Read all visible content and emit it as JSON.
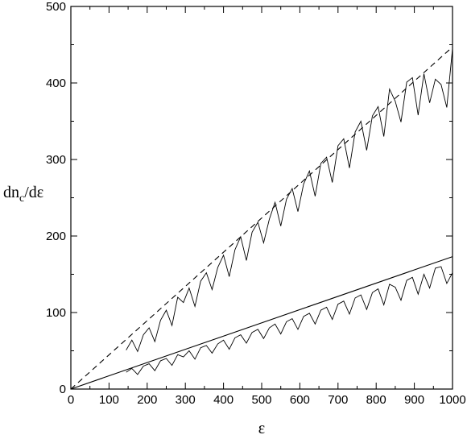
{
  "chart_data": {
    "type": "line",
    "title": "",
    "xlabel": "ε",
    "ylabel": {
      "base": "dn",
      "sub": "c",
      "rest": "/dε"
    },
    "xlim": [
      0,
      1000
    ],
    "ylim": [
      0,
      500
    ],
    "x_ticks": [
      0,
      100,
      200,
      300,
      400,
      500,
      600,
      700,
      800,
      900,
      1000
    ],
    "y_ticks": [
      0,
      100,
      200,
      300,
      400,
      500
    ],
    "grid": false,
    "legend": "none",
    "series": [
      {
        "style": "solid-noisy",
        "x": [
          145,
          160,
          175,
          190,
          205,
          220,
          235,
          250,
          265,
          280,
          295,
          310,
          325,
          340,
          355,
          370,
          385,
          400,
          415,
          430,
          445,
          460,
          475,
          490,
          505,
          520,
          535,
          550,
          565,
          580,
          595,
          610,
          625,
          640,
          655,
          670,
          685,
          700,
          715,
          730,
          745,
          760,
          775,
          790,
          805,
          820,
          835,
          850,
          865,
          880,
          895,
          910,
          925,
          940,
          955,
          970,
          985,
          1000
        ],
        "y": [
          51,
          64,
          49,
          71,
          80,
          62,
          90,
          103,
          83,
          120,
          113,
          132,
          108,
          141,
          152,
          130,
          159,
          175,
          147,
          182,
          199,
          168,
          205,
          218,
          191,
          222,
          244,
          213,
          248,
          262,
          232,
          268,
          285,
          252,
          295,
          303,
          270,
          318,
          327,
          289,
          336,
          350,
          312,
          357,
          369,
          330,
          392,
          376,
          349,
          401,
          407,
          358,
          412,
          374,
          405,
          398,
          368,
          445
        ]
      },
      {
        "style": "solid-noisy",
        "x": [
          145,
          160,
          175,
          190,
          205,
          220,
          235,
          250,
          265,
          280,
          295,
          310,
          325,
          340,
          355,
          370,
          385,
          400,
          415,
          430,
          445,
          460,
          475,
          490,
          505,
          520,
          535,
          550,
          565,
          580,
          595,
          610,
          625,
          640,
          655,
          670,
          685,
          700,
          715,
          730,
          745,
          760,
          775,
          790,
          805,
          820,
          835,
          850,
          865,
          880,
          895,
          910,
          925,
          940,
          955,
          970,
          985,
          1000
        ],
        "y": [
          22,
          27,
          19,
          30,
          33,
          24,
          37,
          40,
          31,
          45,
          42,
          50,
          39,
          54,
          57,
          47,
          59,
          64,
          52,
          67,
          71,
          60,
          74,
          78,
          66,
          80,
          85,
          72,
          88,
          92,
          78,
          95,
          99,
          85,
          103,
          107,
          91,
          111,
          115,
          98,
          119,
          123,
          104,
          126,
          131,
          110,
          137,
          133,
          116,
          142,
          146,
          124,
          150,
          132,
          158,
          160,
          138,
          152
        ]
      },
      {
        "style": "dashed-fit",
        "x": [
          0,
          1000
        ],
        "y": [
          0,
          447
        ]
      },
      {
        "style": "solid-fit",
        "x": [
          0,
          1000
        ],
        "y": [
          0,
          173
        ]
      }
    ]
  }
}
